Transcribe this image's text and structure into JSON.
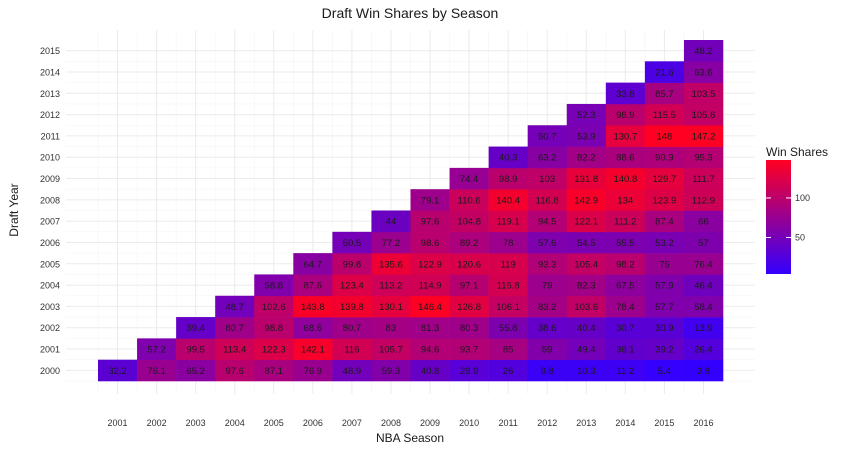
{
  "chart_data": {
    "type": "heatmap",
    "title": "Draft Win Shares by Season",
    "xlabel": "NBA Season",
    "ylabel": "Draft Year",
    "x_categories": [
      "2001",
      "2002",
      "2003",
      "2004",
      "2005",
      "2006",
      "2007",
      "2008",
      "2009",
      "2010",
      "2011",
      "2012",
      "2013",
      "2014",
      "2015",
      "2016"
    ],
    "y_categories": [
      "2000",
      "2001",
      "2002",
      "2003",
      "2004",
      "2005",
      "2006",
      "2007",
      "2008",
      "2009",
      "2010",
      "2011",
      "2012",
      "2013",
      "2014",
      "2015"
    ],
    "rows": [
      {
        "draft_year": "2000",
        "values": [
          32.2,
          76.1,
          65.2,
          97.6,
          87.1,
          76.9,
          48.9,
          59.3,
          40.8,
          29.9,
          26,
          9.8,
          10.3,
          11.2,
          5.4,
          3.8
        ]
      },
      {
        "draft_year": "2001",
        "values": [
          null,
          57.2,
          99.5,
          113.4,
          122.3,
          142.1,
          116,
          105.7,
          94.6,
          93.7,
          85,
          59,
          49.4,
          36.1,
          39.2,
          26.4
        ]
      },
      {
        "draft_year": "2002",
        "values": [
          null,
          null,
          39.4,
          80.7,
          98.8,
          68.6,
          80.7,
          83,
          81.3,
          80.3,
          55.8,
          38.6,
          40.4,
          30.7,
          30.9,
          13.9
        ]
      },
      {
        "draft_year": "2003",
        "values": [
          null,
          null,
          null,
          48.7,
          102.6,
          143.8,
          139.8,
          130.1,
          146.4,
          126.8,
          106.1,
          83.2,
          103.6,
          78.4,
          57.7,
          58.4
        ]
      },
      {
        "draft_year": "2004",
        "values": [
          null,
          null,
          null,
          null,
          58.8,
          87.6,
          123.4,
          113.2,
          114.9,
          97.1,
          116.8,
          79,
          82.3,
          67.5,
          57.9,
          46.4
        ]
      },
      {
        "draft_year": "2005",
        "values": [
          null,
          null,
          null,
          null,
          null,
          64.7,
          99.8,
          135.6,
          122.9,
          120.6,
          119,
          93.3,
          105.4,
          98.2,
          75,
          76.4
        ]
      },
      {
        "draft_year": "2006",
        "values": [
          null,
          null,
          null,
          null,
          null,
          null,
          50.5,
          77.2,
          98.6,
          89.2,
          78,
          57.6,
          54.5,
          55.5,
          53.2,
          57
        ]
      },
      {
        "draft_year": "2007",
        "values": [
          null,
          null,
          null,
          null,
          null,
          null,
          null,
          44,
          97.6,
          104.8,
          119.1,
          94.5,
          122.1,
          111.2,
          87.4,
          66
        ]
      },
      {
        "draft_year": "2008",
        "values": [
          null,
          null,
          null,
          null,
          null,
          null,
          null,
          null,
          79.1,
          110.6,
          140.4,
          116.8,
          142.9,
          134,
          123.9,
          112.9
        ]
      },
      {
        "draft_year": "2009",
        "values": [
          null,
          null,
          null,
          null,
          null,
          null,
          null,
          null,
          null,
          74.4,
          98.9,
          103,
          131.8,
          140.8,
          129.7,
          111.7
        ]
      },
      {
        "draft_year": "2010",
        "values": [
          null,
          null,
          null,
          null,
          null,
          null,
          null,
          null,
          null,
          null,
          40.3,
          63.2,
          82.2,
          88.6,
          90.9,
          95.3
        ]
      },
      {
        "draft_year": "2011",
        "values": [
          null,
          null,
          null,
          null,
          null,
          null,
          null,
          null,
          null,
          null,
          null,
          50.7,
          53.9,
          130.7,
          148,
          147.2
        ]
      },
      {
        "draft_year": "2012",
        "values": [
          null,
          null,
          null,
          null,
          null,
          null,
          null,
          null,
          null,
          null,
          null,
          null,
          52.3,
          98.9,
          115.5,
          105.6
        ]
      },
      {
        "draft_year": "2013",
        "values": [
          null,
          null,
          null,
          null,
          null,
          null,
          null,
          null,
          null,
          null,
          null,
          null,
          null,
          33.8,
          85.7,
          103.5
        ]
      },
      {
        "draft_year": "2014",
        "values": [
          null,
          null,
          null,
          null,
          null,
          null,
          null,
          null,
          null,
          null,
          null,
          null,
          null,
          null,
          21.6,
          63.6
        ]
      },
      {
        "draft_year": "2015",
        "values": [
          null,
          null,
          null,
          null,
          null,
          null,
          null,
          null,
          null,
          null,
          null,
          null,
          null,
          null,
          null,
          48.2
        ]
      }
    ],
    "color_scale": {
      "title": "Win Shares",
      "low_color": "#3300ff",
      "high_color": "#ff0022",
      "min": 3.8,
      "max": 148,
      "legend_ticks": [
        50,
        100
      ]
    },
    "grid": true,
    "legend_position": "right"
  }
}
